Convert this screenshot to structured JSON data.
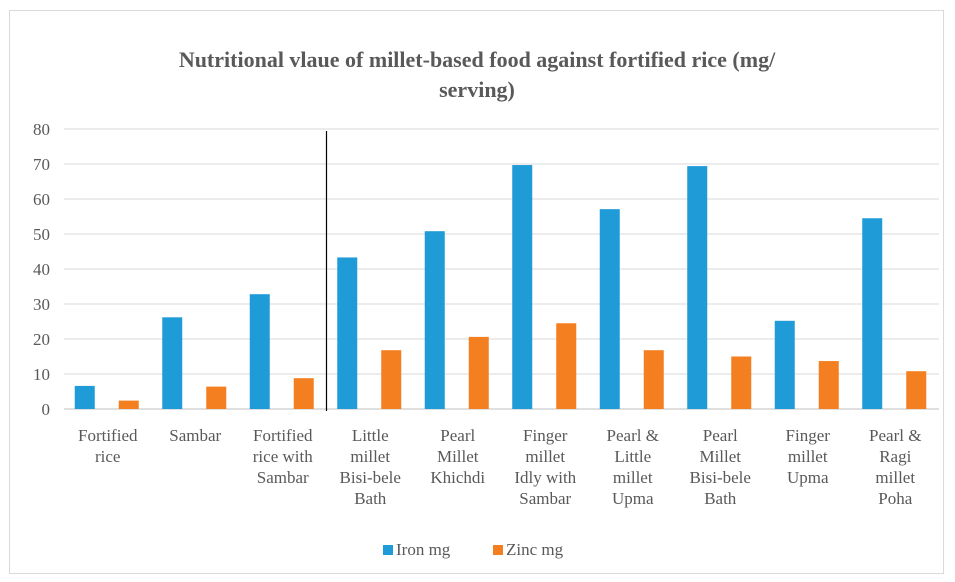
{
  "chart_data": {
    "type": "bar",
    "title_lines": [
      "Nutritional vlaue of millet-based food against fortified rice (mg/",
      "serving)"
    ],
    "xlabel": "",
    "ylabel": "",
    "ylim": [
      0,
      80
    ],
    "yticks": [
      0,
      10,
      20,
      30,
      40,
      50,
      60,
      70,
      80
    ],
    "grid": true,
    "legend_position": "bottom",
    "categories": [
      [
        "Fortified",
        "rice"
      ],
      [
        "Sambar"
      ],
      [
        "Fortified",
        "rice with",
        "Sambar"
      ],
      [
        "Little",
        "millet",
        "Bisi-bele",
        "Bath"
      ],
      [
        "Pearl",
        "Millet",
        "Khichdi"
      ],
      [
        "Finger",
        "millet",
        "Idly with",
        "Sambar"
      ],
      [
        "Pearl &",
        "Little",
        "millet",
        "Upma"
      ],
      [
        "Pearl",
        "Millet",
        "Bisi-bele",
        "Bath"
      ],
      [
        "Finger",
        "millet",
        "Upma"
      ],
      [
        "Pearl &",
        "Ragi",
        "millet",
        "Poha"
      ]
    ],
    "series": [
      {
        "name": "Iron mg",
        "color": "#1f9bd7",
        "values": [
          6.6,
          26.2,
          32.8,
          43.3,
          50.8,
          69.7,
          57.1,
          69.4,
          25.2,
          54.5
        ]
      },
      {
        "name": "Zinc mg",
        "color": "#f47f20",
        "values": [
          2.4,
          6.4,
          8.8,
          16.8,
          20.6,
          24.5,
          16.8,
          15.0,
          13.7,
          10.8
        ]
      }
    ],
    "divider_after_category_index": 2
  }
}
